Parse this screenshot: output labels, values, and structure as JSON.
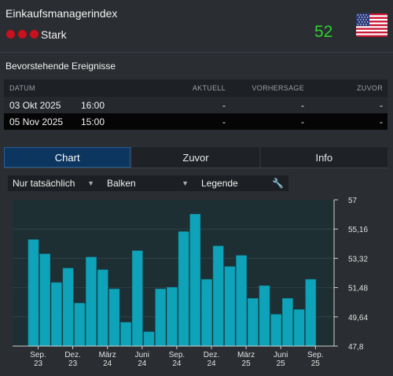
{
  "header": {
    "title": "Einkaufsmanagerindex",
    "importance_label": "Stark",
    "importance_level": 3,
    "value": "52",
    "flag_icon": "us-flag-icon"
  },
  "events": {
    "section_title": "Bevorstehende Ereignisse",
    "columns": {
      "date": "DATUM",
      "actual": "AKTUELL",
      "forecast": "VORHERSAGE",
      "previous": "ZUVOR"
    },
    "rows": [
      {
        "date": "03 Okt 2025",
        "time": "16:00",
        "actual": "-",
        "forecast": "-",
        "previous": "-"
      },
      {
        "date": "05 Nov 2025",
        "time": "15:00",
        "actual": "-",
        "forecast": "-",
        "previous": "-"
      }
    ]
  },
  "tabs": [
    {
      "label": "Chart",
      "active": true
    },
    {
      "label": "Zuvor",
      "active": false
    },
    {
      "label": "Info",
      "active": false
    }
  ],
  "toolbar": {
    "filter_label": "Nur tatsächlich",
    "type_label": "Balken",
    "legend_label": "Legende"
  },
  "colors": {
    "bar": "#0ea3b9",
    "bar_edge": "#0b7f91",
    "plot_bg": "#1e2f33",
    "accent_value": "#2ed12e",
    "importance_dot": "#c8101e"
  },
  "chart_data": {
    "type": "bar",
    "y_ticks": [
      "57",
      "55,16",
      "53,32",
      "51,48",
      "49,64",
      "47,8"
    ],
    "ylim": [
      47.8,
      57
    ],
    "x_tick_labels": [
      [
        "Sep.",
        "23"
      ],
      [
        "Dez.",
        "23"
      ],
      [
        "März",
        "24"
      ],
      [
        "Juni",
        "24"
      ],
      [
        "Sep.",
        "24"
      ],
      [
        "Dez.",
        "24"
      ],
      [
        "März",
        "25"
      ],
      [
        "Juni",
        "25"
      ],
      [
        "Sep.",
        "25"
      ]
    ],
    "x_tick_bar_index": [
      0,
      3,
      6,
      9,
      12,
      15,
      18,
      21,
      24
    ],
    "values": [
      54.5,
      53.6,
      51.8,
      52.7,
      50.5,
      53.4,
      52.6,
      51.4,
      49.3,
      53.8,
      48.7,
      51.4,
      51.5,
      55.0,
      56.1,
      52.0,
      54.1,
      52.8,
      53.5,
      50.8,
      51.6,
      49.8,
      50.8,
      50.1,
      52.0
    ]
  }
}
